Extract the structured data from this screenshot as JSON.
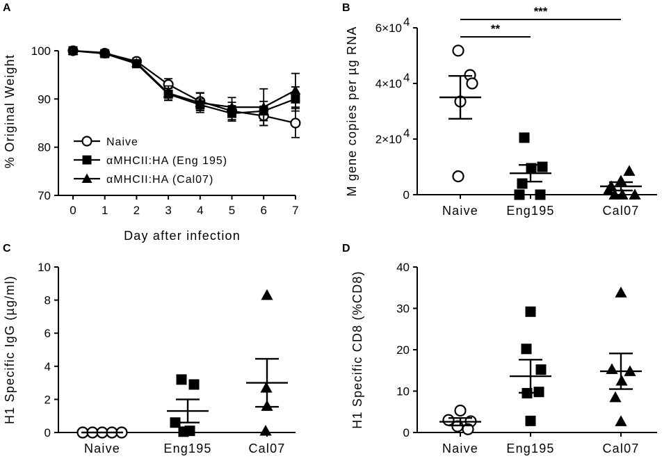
{
  "chart_data": [
    {
      "panel": "A",
      "type": "line",
      "xlabel": "Day after infection",
      "ylabel": "% Original Weight",
      "x": [
        0,
        1,
        2,
        3,
        4,
        5,
        6,
        7
      ],
      "xlim": [
        0,
        7
      ],
      "ylim": [
        70,
        100
      ],
      "yticks": [
        70,
        80,
        90,
        100
      ],
      "legend_position": "bottom-left",
      "series": [
        {
          "name": "Naive",
          "marker": "circle-open",
          "values": [
            100,
            99.5,
            97.8,
            93.0,
            89.5,
            87.5,
            86.5,
            85.0
          ],
          "err": [
            0.5,
            0.6,
            0.7,
            1.2,
            1.8,
            1.8,
            2.0,
            3.0
          ]
        },
        {
          "name": "αMHCII:HA (Eng 195)",
          "marker": "square",
          "values": [
            100,
            99.4,
            97.3,
            91.0,
            88.8,
            87.0,
            87.5,
            90.0
          ],
          "err": [
            0.4,
            0.5,
            0.6,
            1.2,
            1.2,
            1.6,
            2.0,
            2.5
          ]
        },
        {
          "name": "αMHCII:HA (Cal07)",
          "marker": "triangle",
          "values": [
            100,
            99.6,
            97.5,
            91.2,
            89.2,
            88.3,
            88.3,
            91.8
          ],
          "err": [
            0.4,
            0.5,
            0.6,
            1.5,
            2.0,
            2.0,
            3.8,
            3.5
          ]
        }
      ]
    },
    {
      "panel": "B",
      "type": "scatter",
      "ylabel": "M gene copies per µg RNA",
      "categories": [
        "Naive",
        "Eng195",
        "Cal07"
      ],
      "yticks": [
        "0",
        "2×10",
        "4×10",
        "6×10"
      ],
      "ytick_values": [
        0,
        20000,
        40000,
        60000
      ],
      "ytick_exponent": "4",
      "ylim": [
        0,
        60000
      ],
      "groups": [
        {
          "name": "Naive",
          "marker": "circle-open",
          "points": [
            51800,
            43000,
            40000,
            33500,
            6600
          ],
          "mean": 35000,
          "sem": 7700
        },
        {
          "name": "Eng195",
          "marker": "square",
          "points": [
            20500,
            10000,
            9500,
            4000,
            0,
            0
          ],
          "mean": 7700,
          "sem": 3000
        },
        {
          "name": "Cal07",
          "marker": "triangle",
          "points": [
            8500,
            5000,
            3000,
            1500,
            0,
            0,
            0
          ],
          "mean": 3000,
          "sem": 1500
        }
      ],
      "annotations": [
        {
          "label": "**",
          "from": "Naive",
          "to": "Eng195"
        },
        {
          "label": "***",
          "from": "Naive",
          "to": "Cal07"
        }
      ]
    },
    {
      "panel": "C",
      "type": "scatter",
      "ylabel": "H1 Specific IgG (µg/ml)",
      "categories": [
        "Naive",
        "Eng195",
        "Cal07"
      ],
      "ylim": [
        0,
        10
      ],
      "yticks": [
        0,
        2,
        4,
        6,
        8,
        10
      ],
      "groups": [
        {
          "name": "Naive",
          "marker": "circle-open",
          "points": [
            0,
            0,
            0,
            0,
            0
          ],
          "mean": 0,
          "sem": 0
        },
        {
          "name": "Eng195",
          "marker": "square",
          "points": [
            3.2,
            2.9,
            0.6,
            0.1,
            0.05
          ],
          "mean": 1.3,
          "sem": 0.7
        },
        {
          "name": "Cal07",
          "marker": "triangle",
          "points": [
            8.3,
            2.7,
            1.6,
            0.1
          ],
          "mean": 3.0,
          "sem": 1.45
        }
      ]
    },
    {
      "panel": "D",
      "type": "scatter",
      "ylabel": "H1 Specific CD8 (%CD8)",
      "categories": [
        "Naive",
        "Eng195",
        "Cal07"
      ],
      "ylim": [
        0,
        40
      ],
      "yticks": [
        0,
        10,
        20,
        30,
        40
      ],
      "groups": [
        {
          "name": "Naive",
          "marker": "circle-open",
          "points": [
            5.3,
            3.0,
            2.7,
            1.5,
            0.8
          ],
          "mean": 2.6,
          "sem": 0.9
        },
        {
          "name": "Eng195",
          "marker": "square",
          "points": [
            29.2,
            20.2,
            15.2,
            9.8,
            9.5,
            2.8
          ],
          "mean": 13.6,
          "sem": 4.0
        },
        {
          "name": "Cal07",
          "marker": "triangle",
          "points": [
            33.8,
            15.3,
            14.8,
            12.5,
            8.5,
            2.7
          ],
          "mean": 14.8,
          "sem": 4.3
        }
      ]
    }
  ]
}
